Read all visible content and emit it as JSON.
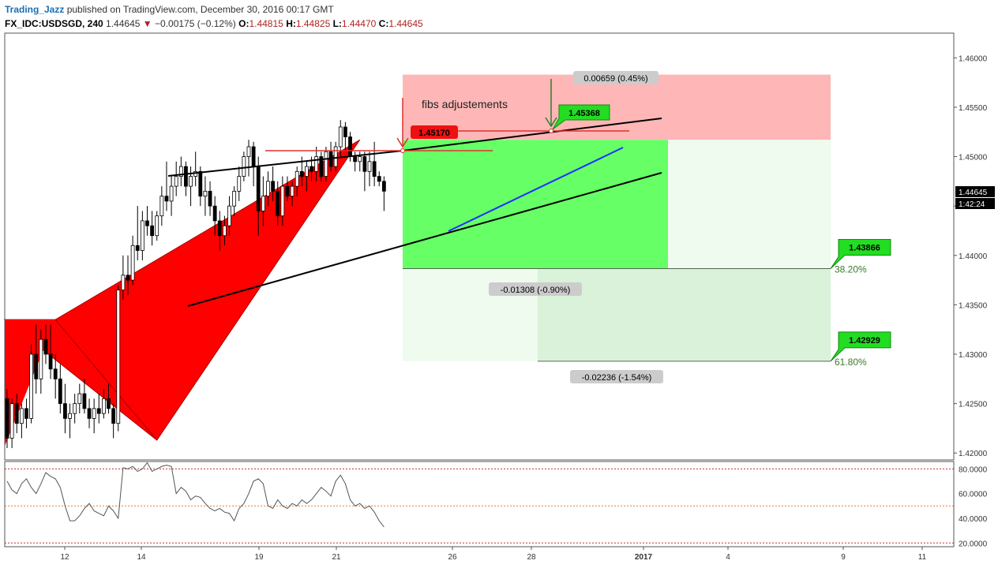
{
  "header": {
    "author": "Trading_Jazz",
    "published_text": "published on TradingView.com, December 30, 2016 00:17 GMT",
    "symbol": "FX_IDC:USDSGD, 240",
    "last": "1.44645",
    "change": "−0.00175 (−0.12%)",
    "open_label": "O:",
    "open": "1.44815",
    "high_label": "H:",
    "high": "1.44825",
    "low_label": "L:",
    "low": "1.44470",
    "close_label": "C:",
    "close": "1.44645"
  },
  "colors": {
    "up_candle": "#ffffff",
    "down_candle": "#000000",
    "pattern_fill": "#ff0000",
    "target_zone": "#66ff66",
    "stop_zone": "#ffb6b6",
    "fib_zone": "#d9f2d9",
    "trend_line": "#000000",
    "blue_line": "#1f2fff",
    "label_green": "#22dd22",
    "label_red": "#ee1111"
  },
  "chart_data": {
    "type": "candlestick",
    "price_axis": {
      "ylim": [
        1.4193,
        1.4625
      ],
      "ticks": [
        "1.46000",
        "1.45500",
        "1.45000",
        "1.44500",
        "1.44000",
        "1.43500",
        "1.43000",
        "1.42500",
        "1.42000"
      ],
      "current_price": "1.44645",
      "countdown": "1:42:24"
    },
    "time_axis": {
      "ticks": [
        "12",
        "14",
        "19",
        "21",
        "26",
        "28",
        "2017",
        "4",
        "9",
        "11"
      ]
    },
    "candles": [
      [
        1.4255,
        1.4265,
        1.4205,
        1.4215
      ],
      [
        1.4215,
        1.4255,
        1.4205,
        1.425
      ],
      [
        1.425,
        1.426,
        1.422,
        1.423
      ],
      [
        1.423,
        1.425,
        1.4215,
        1.4245
      ],
      [
        1.4245,
        1.4255,
        1.4225,
        1.4235
      ],
      [
        1.4235,
        1.431,
        1.423,
        1.43
      ],
      [
        1.43,
        1.433,
        1.426,
        1.4275
      ],
      [
        1.4275,
        1.4325,
        1.426,
        1.4315
      ],
      [
        1.4315,
        1.433,
        1.429,
        1.43
      ],
      [
        1.43,
        1.433,
        1.4275,
        1.4285
      ],
      [
        1.4285,
        1.43,
        1.4255,
        1.4275
      ],
      [
        1.4275,
        1.429,
        1.424,
        1.425
      ],
      [
        1.425,
        1.427,
        1.422,
        1.4235
      ],
      [
        1.4235,
        1.425,
        1.4215,
        1.424
      ],
      [
        1.424,
        1.426,
        1.423,
        1.425
      ],
      [
        1.425,
        1.427,
        1.424,
        1.426
      ],
      [
        1.426,
        1.4275,
        1.424,
        1.4245
      ],
      [
        1.4245,
        1.4255,
        1.4225,
        1.4235
      ],
      [
        1.4235,
        1.4255,
        1.422,
        1.4245
      ],
      [
        1.4245,
        1.426,
        1.423,
        1.424
      ],
      [
        1.424,
        1.4265,
        1.4235,
        1.4255
      ],
      [
        1.4255,
        1.427,
        1.424,
        1.4245
      ],
      [
        1.4245,
        1.425,
        1.4215,
        1.423
      ],
      [
        1.423,
        1.437,
        1.4222,
        1.4365
      ],
      [
        1.4365,
        1.44,
        1.4355,
        1.438
      ],
      [
        1.438,
        1.44,
        1.436,
        1.4375
      ],
      [
        1.4375,
        1.442,
        1.437,
        1.441
      ],
      [
        1.441,
        1.445,
        1.4395,
        1.4405
      ],
      [
        1.4405,
        1.4445,
        1.4395,
        1.4435
      ],
      [
        1.4435,
        1.445,
        1.442,
        1.443
      ],
      [
        1.443,
        1.4445,
        1.441,
        1.442
      ],
      [
        1.442,
        1.4445,
        1.4415,
        1.444
      ],
      [
        1.444,
        1.447,
        1.443,
        1.446
      ],
      [
        1.446,
        1.4495,
        1.4445,
        1.4455
      ],
      [
        1.4455,
        1.448,
        1.444,
        1.447
      ],
      [
        1.447,
        1.4495,
        1.446,
        1.448
      ],
      [
        1.448,
        1.45,
        1.447,
        1.449
      ],
      [
        1.449,
        1.4495,
        1.446,
        1.447
      ],
      [
        1.447,
        1.449,
        1.445,
        1.448
      ],
      [
        1.448,
        1.4505,
        1.447,
        1.4485
      ],
      [
        1.4485,
        1.449,
        1.445,
        1.446
      ],
      [
        1.446,
        1.448,
        1.444,
        1.4465
      ],
      [
        1.4465,
        1.4475,
        1.444,
        1.445
      ],
      [
        1.445,
        1.446,
        1.442,
        1.4435
      ],
      [
        1.4435,
        1.4445,
        1.4405,
        1.442
      ],
      [
        1.442,
        1.444,
        1.441,
        1.443
      ],
      [
        1.443,
        1.446,
        1.442,
        1.445
      ],
      [
        1.445,
        1.447,
        1.444,
        1.4465
      ],
      [
        1.4465,
        1.449,
        1.4455,
        1.448
      ],
      [
        1.448,
        1.4505,
        1.4475,
        1.45
      ],
      [
        1.45,
        1.4517,
        1.448,
        1.451
      ],
      [
        1.451,
        1.4515,
        1.447,
        1.449
      ],
      [
        1.449,
        1.45,
        1.442,
        1.4445
      ],
      [
        1.4445,
        1.448,
        1.443,
        1.446
      ],
      [
        1.446,
        1.4485,
        1.445,
        1.4475
      ],
      [
        1.4475,
        1.449,
        1.4455,
        1.4465
      ],
      [
        1.4465,
        1.4475,
        1.443,
        1.444
      ],
      [
        1.444,
        1.448,
        1.443,
        1.447
      ],
      [
        1.447,
        1.448,
        1.4455,
        1.446
      ],
      [
        1.446,
        1.4475,
        1.445,
        1.447
      ],
      [
        1.447,
        1.449,
        1.446,
        1.4485
      ],
      [
        1.4485,
        1.45,
        1.447,
        1.448
      ],
      [
        1.448,
        1.4495,
        1.4465,
        1.449
      ],
      [
        1.449,
        1.45,
        1.4475,
        1.4485
      ],
      [
        1.4485,
        1.451,
        1.4475,
        1.45
      ],
      [
        1.45,
        1.4505,
        1.4475,
        1.448
      ],
      [
        1.448,
        1.451,
        1.4475,
        1.4505
      ],
      [
        1.4505,
        1.4515,
        1.4485,
        1.449
      ],
      [
        1.449,
        1.4515,
        1.4485,
        1.451
      ],
      [
        1.451,
        1.4537,
        1.45,
        1.453
      ],
      [
        1.453,
        1.4535,
        1.4505,
        1.452
      ],
      [
        1.452,
        1.4525,
        1.4495,
        1.45
      ],
      [
        1.45,
        1.4505,
        1.4485,
        1.4495
      ],
      [
        1.4495,
        1.4505,
        1.4485,
        1.45
      ],
      [
        1.45,
        1.4505,
        1.4465,
        1.4485
      ],
      [
        1.4485,
        1.4505,
        1.447,
        1.4495
      ],
      [
        1.4495,
        1.4515,
        1.447,
        1.448
      ],
      [
        1.448,
        1.4485,
        1.447,
        1.4475
      ],
      [
        1.4475,
        1.448,
        1.4445,
        1.4465
      ]
    ],
    "harmonic_pattern": [
      [
        0,
        1.4335
      ],
      [
        10,
        1.4335
      ],
      [
        31,
        1.4213
      ],
      [
        73,
        1.4517
      ],
      [
        10,
        1.4335
      ]
    ],
    "annotations": {
      "fibs_text": "fibs adjustements",
      "label_entry": "1.45170",
      "label_high": "1.45368",
      "range_up": "0.00659 (0.45%)",
      "range_target1": "-0.01308 (-0.90%)",
      "range_target2": "-0.02236 (-1.54%)",
      "fib1_price": "1.43866",
      "fib1_pct": "38.20%",
      "fib2_price": "1.42929",
      "fib2_pct": "61.80%"
    },
    "oscillator": {
      "ticks": [
        "80.0000",
        "60.0000",
        "40.0000",
        "20.0000"
      ],
      "ylim": [
        17,
        86
      ],
      "levels": [
        80,
        50,
        20
      ],
      "values": [
        70,
        63,
        60,
        68,
        72,
        65,
        60,
        68,
        77,
        74,
        72,
        65,
        50,
        38,
        38,
        42,
        48,
        52,
        46,
        44,
        42,
        50,
        46,
        40,
        81,
        80,
        82,
        78,
        80,
        85,
        78,
        80,
        82,
        83,
        82,
        60,
        65,
        62,
        55,
        58,
        57,
        52,
        48,
        46,
        48,
        45,
        44,
        38,
        48,
        52,
        60,
        70,
        72,
        68,
        50,
        48,
        55,
        50,
        48,
        52,
        50,
        55,
        52,
        55,
        60,
        65,
        62,
        58,
        70,
        75,
        68,
        55,
        50,
        52,
        48,
        50,
        45,
        38,
        33
      ]
    }
  }
}
